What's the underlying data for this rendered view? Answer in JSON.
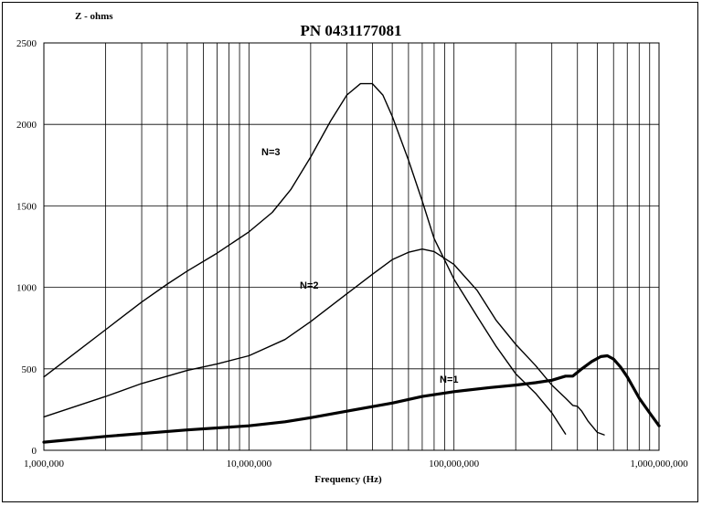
{
  "chart_data": {
    "type": "line",
    "title": "PN 0431177081",
    "xlabel": "Frequency (Hz)",
    "ylabel": "Z  - ohms",
    "x_scale": "log",
    "xlim": [
      1000000,
      1000000000
    ],
    "ylim": [
      0,
      2500
    ],
    "x_tick_labels": [
      "1,000,000",
      "10,000,000",
      "100,000,000",
      "1,000,000,000"
    ],
    "y_tick_labels": [
      "0",
      "500",
      "1000",
      "1500",
      "2000",
      "2500"
    ],
    "grid": true,
    "series": [
      {
        "name": "N=1",
        "points": [
          [
            1000000,
            50
          ],
          [
            2000000,
            85
          ],
          [
            5000000,
            125
          ],
          [
            10000000,
            150
          ],
          [
            15000000,
            175
          ],
          [
            20000000,
            200
          ],
          [
            30000000,
            240
          ],
          [
            50000000,
            290
          ],
          [
            70000000,
            330
          ],
          [
            100000000,
            360
          ],
          [
            150000000,
            385
          ],
          [
            200000000,
            400
          ],
          [
            250000000,
            415
          ],
          [
            300000000,
            430
          ],
          [
            350000000,
            455
          ],
          [
            380000000,
            455
          ],
          [
            420000000,
            500
          ],
          [
            470000000,
            545
          ],
          [
            520000000,
            575
          ],
          [
            560000000,
            580
          ],
          [
            600000000,
            560
          ],
          [
            650000000,
            510
          ],
          [
            700000000,
            450
          ],
          [
            800000000,
            320
          ],
          [
            900000000,
            230
          ],
          [
            1000000000,
            150
          ]
        ]
      },
      {
        "name": "N=2",
        "points": [
          [
            1000000,
            205
          ],
          [
            2000000,
            330
          ],
          [
            3000000,
            410
          ],
          [
            5000000,
            490
          ],
          [
            7000000,
            530
          ],
          [
            10000000,
            580
          ],
          [
            15000000,
            680
          ],
          [
            20000000,
            790
          ],
          [
            30000000,
            960
          ],
          [
            40000000,
            1080
          ],
          [
            50000000,
            1170
          ],
          [
            60000000,
            1215
          ],
          [
            70000000,
            1235
          ],
          [
            80000000,
            1220
          ],
          [
            100000000,
            1140
          ],
          [
            130000000,
            980
          ],
          [
            160000000,
            800
          ],
          [
            200000000,
            650
          ],
          [
            250000000,
            520
          ],
          [
            300000000,
            400
          ],
          [
            350000000,
            320
          ],
          [
            380000000,
            275
          ],
          [
            400000000,
            270
          ],
          [
            420000000,
            240
          ],
          [
            450000000,
            180
          ],
          [
            500000000,
            110
          ],
          [
            540000000,
            95
          ]
        ]
      },
      {
        "name": "N=3",
        "points": [
          [
            1000000,
            450
          ],
          [
            2000000,
            740
          ],
          [
            3000000,
            910
          ],
          [
            4000000,
            1020
          ],
          [
            5000000,
            1100
          ],
          [
            7000000,
            1210
          ],
          [
            10000000,
            1340
          ],
          [
            13000000,
            1460
          ],
          [
            16000000,
            1600
          ],
          [
            20000000,
            1800
          ],
          [
            25000000,
            2020
          ],
          [
            30000000,
            2180
          ],
          [
            35000000,
            2250
          ],
          [
            40000000,
            2250
          ],
          [
            45000000,
            2180
          ],
          [
            50000000,
            2050
          ],
          [
            60000000,
            1780
          ],
          [
            70000000,
            1530
          ],
          [
            80000000,
            1300
          ],
          [
            100000000,
            1050
          ],
          [
            130000000,
            820
          ],
          [
            160000000,
            640
          ],
          [
            200000000,
            470
          ],
          [
            250000000,
            350
          ],
          [
            300000000,
            230
          ],
          [
            350000000,
            100
          ]
        ]
      }
    ],
    "annotations": [
      "N=3",
      "N=2",
      "N=1"
    ]
  }
}
